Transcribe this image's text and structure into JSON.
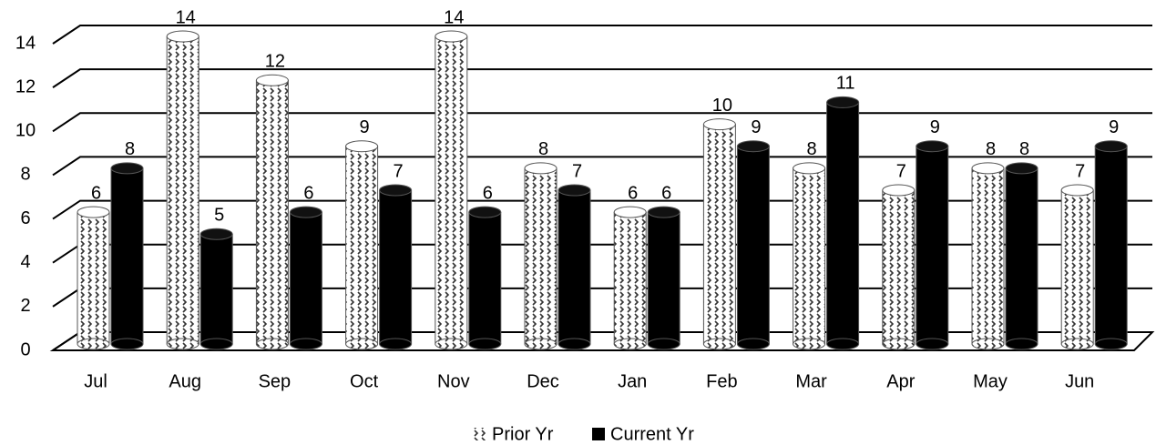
{
  "chart_data": {
    "type": "cylinder-bar",
    "categories": [
      "Jul",
      "Aug",
      "Sep",
      "Oct",
      "Nov",
      "Dec",
      "Jan",
      "Feb",
      "Mar",
      "Apr",
      "May",
      "Jun"
    ],
    "series": [
      {
        "name": "Prior Yr",
        "color": "#333333",
        "values": [
          6,
          14,
          12,
          9,
          14,
          8,
          6,
          10,
          8,
          7,
          8,
          7
        ]
      },
      {
        "name": "Current Yr",
        "color": "#000000",
        "values": [
          8,
          5,
          6,
          7,
          6,
          7,
          6,
          9,
          11,
          9,
          8,
          9
        ]
      }
    ],
    "ylim": [
      0,
      14
    ],
    "yticks": [
      0,
      2,
      4,
      6,
      8,
      10,
      12,
      14
    ],
    "grid": true,
    "legend": "bottom"
  }
}
